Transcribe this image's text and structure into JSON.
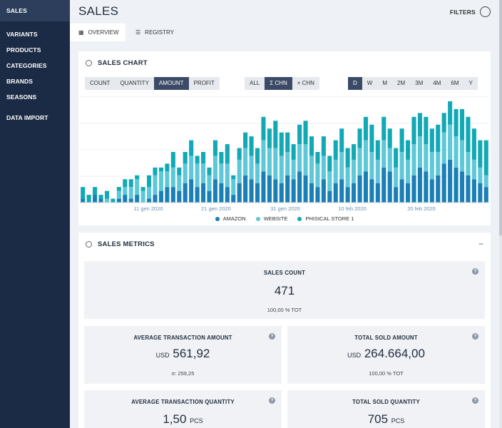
{
  "sidebar": {
    "items": [
      {
        "label": "SALES",
        "active": true
      },
      {
        "label": "VARIANTS"
      },
      {
        "label": "PRODUCTS"
      },
      {
        "label": "CATEGORIES"
      },
      {
        "label": "BRANDS"
      },
      {
        "label": "SEASONS"
      },
      {
        "label": "DATA IMPORT"
      }
    ]
  },
  "header": {
    "title": "SALES",
    "filters_label": "FILTERS",
    "filters_icon": "circle-toggle-icon"
  },
  "tabs": [
    {
      "label": "OVERVIEW",
      "icon": "grid-icon",
      "active": true
    },
    {
      "label": "REGISTRY",
      "icon": "list-icon"
    }
  ],
  "sales_chart": {
    "title": "SALES CHART",
    "measure_buttons": [
      "COUNT",
      "QUANTITY",
      "AMOUNT",
      "PROFIT"
    ],
    "measure_selected": "AMOUNT",
    "channel_buttons": [
      "ALL",
      "Σ CHN",
      "× CHN"
    ],
    "channel_selected": "Σ CHN",
    "period_buttons": [
      "D",
      "W",
      "M",
      "2M",
      "3M",
      "4M",
      "6M",
      "Y"
    ],
    "period_selected": "D"
  },
  "chart_data": {
    "type": "bar",
    "stacked": true,
    "x_tick_labels": [
      "11 gen 2020",
      "21 gen 2020",
      "31 gen 2020",
      "10 feb 2020",
      "20 feb 2020"
    ],
    "series": [
      {
        "name": "AMAZON",
        "color": "#1a7fb5",
        "values": [
          1,
          0,
          2,
          1,
          0,
          0,
          1,
          2,
          1,
          2,
          0,
          1,
          2,
          3,
          4,
          4,
          3,
          5,
          6,
          4,
          5,
          3,
          6,
          5,
          4,
          2,
          5,
          7,
          6,
          5,
          8,
          7,
          6,
          5,
          7,
          6,
          8,
          7,
          5,
          4,
          6,
          3,
          5,
          6,
          4,
          5,
          7,
          8,
          6,
          5,
          9,
          8,
          4,
          6,
          5,
          7,
          9,
          8,
          6,
          7,
          10,
          11,
          9,
          8,
          7,
          6,
          5,
          4
        ]
      },
      {
        "name": "WEBSITE",
        "color": "#5ec8d8",
        "values": [
          0,
          0,
          0,
          0,
          1,
          0,
          2,
          2,
          3,
          4,
          3,
          3,
          5,
          5,
          4,
          5,
          4,
          5,
          6,
          6,
          5,
          4,
          6,
          5,
          6,
          4,
          6,
          7,
          6,
          5,
          8,
          7,
          8,
          7,
          6,
          5,
          7,
          8,
          7,
          6,
          6,
          5,
          6,
          7,
          5,
          6,
          7,
          8,
          7,
          6,
          7,
          6,
          5,
          7,
          6,
          8,
          8,
          7,
          7,
          6,
          8,
          9,
          8,
          8,
          6,
          5,
          4,
          3
        ]
      },
      {
        "name": "PHISICAL STORE 1",
        "color": "#12a9b5",
        "values": [
          3,
          2,
          2,
          1,
          2,
          1,
          1,
          2,
          2,
          1,
          1,
          3,
          2,
          1,
          2,
          4,
          2,
          3,
          4,
          2,
          3,
          2,
          4,
          3,
          5,
          1,
          3,
          4,
          5,
          4,
          6,
          5,
          7,
          6,
          5,
          4,
          5,
          6,
          5,
          3,
          5,
          4,
          5,
          6,
          5,
          4,
          5,
          6,
          7,
          5,
          6,
          5,
          5,
          6,
          5,
          7,
          6,
          7,
          6,
          7,
          5,
          6,
          7,
          8,
          9,
          8,
          7,
          9
        ]
      }
    ],
    "xlabel": "",
    "ylabel": "",
    "grid": true,
    "legend_position": "bottom-center"
  },
  "legend": [
    "AMAZON",
    "WEBSITE",
    "PHISICAL STORE 1"
  ],
  "sales_metrics": {
    "title": "SALES METRICS",
    "collapse_symbol": "−",
    "help_symbol": "?",
    "sales_count": {
      "label": "SALES COUNT",
      "value": "471",
      "sub": "100,00 % TOT"
    },
    "avg_transaction_amount": {
      "label": "AVERAGE TRANSACTION AMOUNT",
      "currency": "USD",
      "value": "561,92",
      "sub": "σ: 259,25"
    },
    "total_sold_amount": {
      "label": "TOTAL SOLD AMOUNT",
      "currency": "USD",
      "value": "264.664,00",
      "sub": "100,00 % TOT"
    },
    "avg_transaction_quantity": {
      "label": "AVERAGE TRANSACTION QUANTITY",
      "value": "1,50",
      "unit": "PCS"
    },
    "total_sold_quantity": {
      "label": "TOTAL SOLD QUANTITY",
      "value": "705",
      "unit": "PCS"
    }
  }
}
